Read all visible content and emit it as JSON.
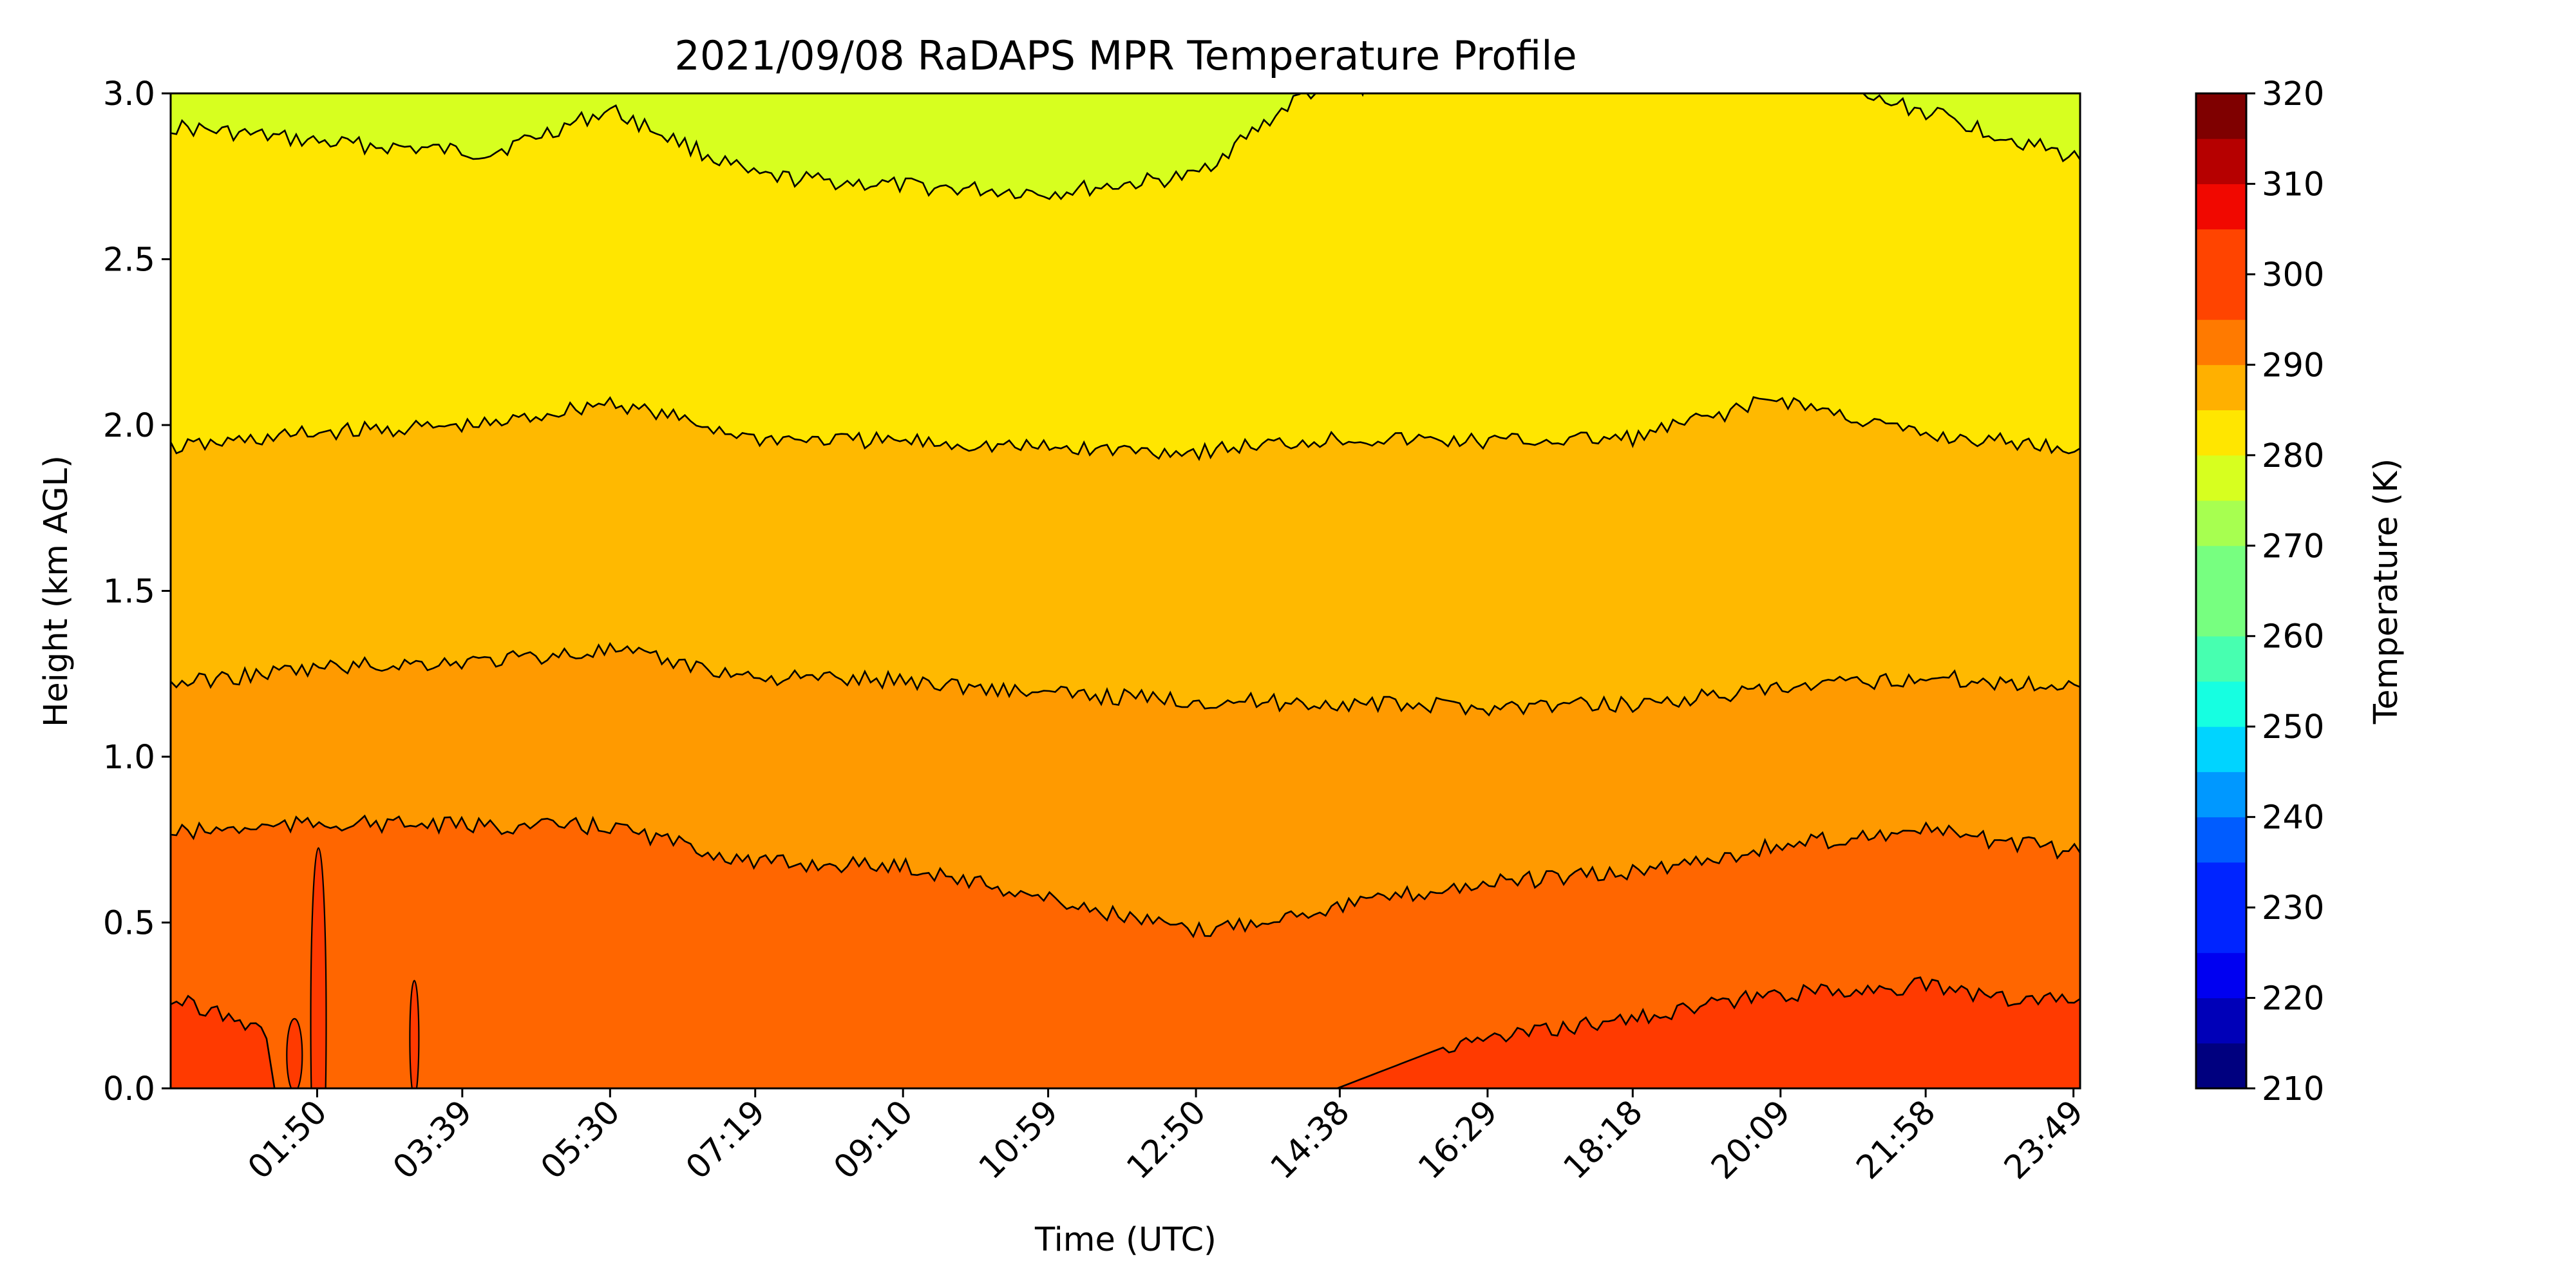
{
  "chart_data": {
    "type": "heatmap",
    "subtype": "filled-contour",
    "title": "2021/09/08 RaDAPS MPR Temperature Profile",
    "xlabel": "Time (UTC)",
    "ylabel": "Height (km AGL)",
    "xlim_hours": [
      0.0,
      23.9
    ],
    "ylim": [
      0.0,
      3.0
    ],
    "x_tick_hours": [
      1.8333,
      3.65,
      5.5,
      7.3167,
      9.1667,
      10.9833,
      12.8333,
      14.6333,
      16.4833,
      18.3,
      20.15,
      21.9667,
      23.8167
    ],
    "x_tick_labels": [
      "01:50",
      "03:39",
      "05:30",
      "07:19",
      "09:10",
      "10:59",
      "12:50",
      "14:38",
      "16:29",
      "18:18",
      "20:09",
      "21:58",
      "23:49"
    ],
    "y_ticks": [
      0.0,
      0.5,
      1.0,
      1.5,
      2.0,
      2.5,
      3.0
    ],
    "y_tick_labels": [
      "0.0",
      "0.5",
      "1.0",
      "1.5",
      "2.0",
      "2.5",
      "3.0"
    ],
    "colorbar": {
      "label": "Temperature (K)",
      "range": [
        210,
        320
      ],
      "step": 5,
      "ticks": [
        210,
        220,
        230,
        240,
        250,
        260,
        270,
        280,
        290,
        300,
        310,
        320
      ],
      "tick_labels": [
        "210",
        "220",
        "230",
        "240",
        "250",
        "260",
        "270",
        "280",
        "290",
        "300",
        "310",
        "320"
      ],
      "colors": [
        "#00007f",
        "#0000b8",
        "#0000f1",
        "#0024ff",
        "#005cff",
        "#0098ff",
        "#00d4ff",
        "#16ffe1",
        "#47ffb0",
        "#77ff80",
        "#a7ff50",
        "#d7ff1f",
        "#ffe600",
        "#ffb000",
        "#ff7a00",
        "#ff4400",
        "#f10800",
        "#b60000",
        "#7f0000"
      ],
      "color_note": "22 bands of 5 K from 210 to 320 K (jet colormap)"
    },
    "contour_bands": [
      {
        "range_K": [
          275,
          280
        ],
        "color": "#d7ff1f"
      },
      {
        "range_K": [
          280,
          285
        ],
        "color": "#ffe600"
      },
      {
        "range_K": [
          285,
          290
        ],
        "color": "#ffb900"
      },
      {
        "range_K": [
          290,
          295
        ],
        "color": "#ff9a00"
      },
      {
        "range_K": [
          295,
          300
        ],
        "color": "#ff6600"
      },
      {
        "range_K": [
          300,
          305
        ],
        "color": "#ff3a00"
      }
    ],
    "contour_lines": [
      {
        "level_K": 280,
        "x_hours": [
          0,
          2,
          4,
          5.5,
          7.3,
          9.2,
          11,
          12.8,
          14.2,
          16,
          18,
          20,
          21.9,
          23.9
        ],
        "height_km": [
          2.9,
          2.85,
          2.82,
          2.95,
          2.75,
          2.72,
          2.7,
          2.75,
          3.0,
          3.05,
          3.05,
          3.05,
          2.95,
          2.8
        ]
      },
      {
        "level_K": 285,
        "x_hours": [
          0,
          2,
          4,
          5.5,
          7.3,
          9.2,
          11,
          12.8,
          14.6,
          16.5,
          18.3,
          20.1,
          21.9,
          23.9
        ],
        "height_km": [
          1.93,
          1.98,
          2.0,
          2.07,
          1.96,
          1.95,
          1.93,
          1.92,
          1.96,
          1.95,
          1.96,
          2.08,
          1.97,
          1.93
        ]
      },
      {
        "level_K": 290,
        "x_hours": [
          0,
          2,
          4,
          5.5,
          7.3,
          9.2,
          11,
          12.8,
          14.6,
          16.5,
          18.3,
          20.1,
          21.9,
          23.9
        ],
        "height_km": [
          1.22,
          1.27,
          1.29,
          1.32,
          1.24,
          1.23,
          1.19,
          1.17,
          1.16,
          1.15,
          1.16,
          1.2,
          1.24,
          1.21
        ]
      },
      {
        "level_K": 295,
        "x_hours": [
          0,
          2,
          4,
          5.5,
          7.3,
          9.2,
          11,
          12.8,
          14.6,
          16.5,
          18.3,
          20.1,
          21.9,
          23.9
        ],
        "height_km": [
          0.77,
          0.8,
          0.79,
          0.79,
          0.68,
          0.67,
          0.57,
          0.47,
          0.55,
          0.62,
          0.65,
          0.73,
          0.78,
          0.71
        ]
      },
      {
        "level_K": 300,
        "x_hours": [
          0,
          0.8,
          1.2,
          1.3,
          14.6,
          16,
          18,
          20,
          21.9,
          23,
          23.9
        ],
        "height_km": [
          0.27,
          0.22,
          0.15,
          0.0,
          0.0,
          0.13,
          0.2,
          0.28,
          0.31,
          0.27,
          0.27
        ]
      }
    ]
  }
}
